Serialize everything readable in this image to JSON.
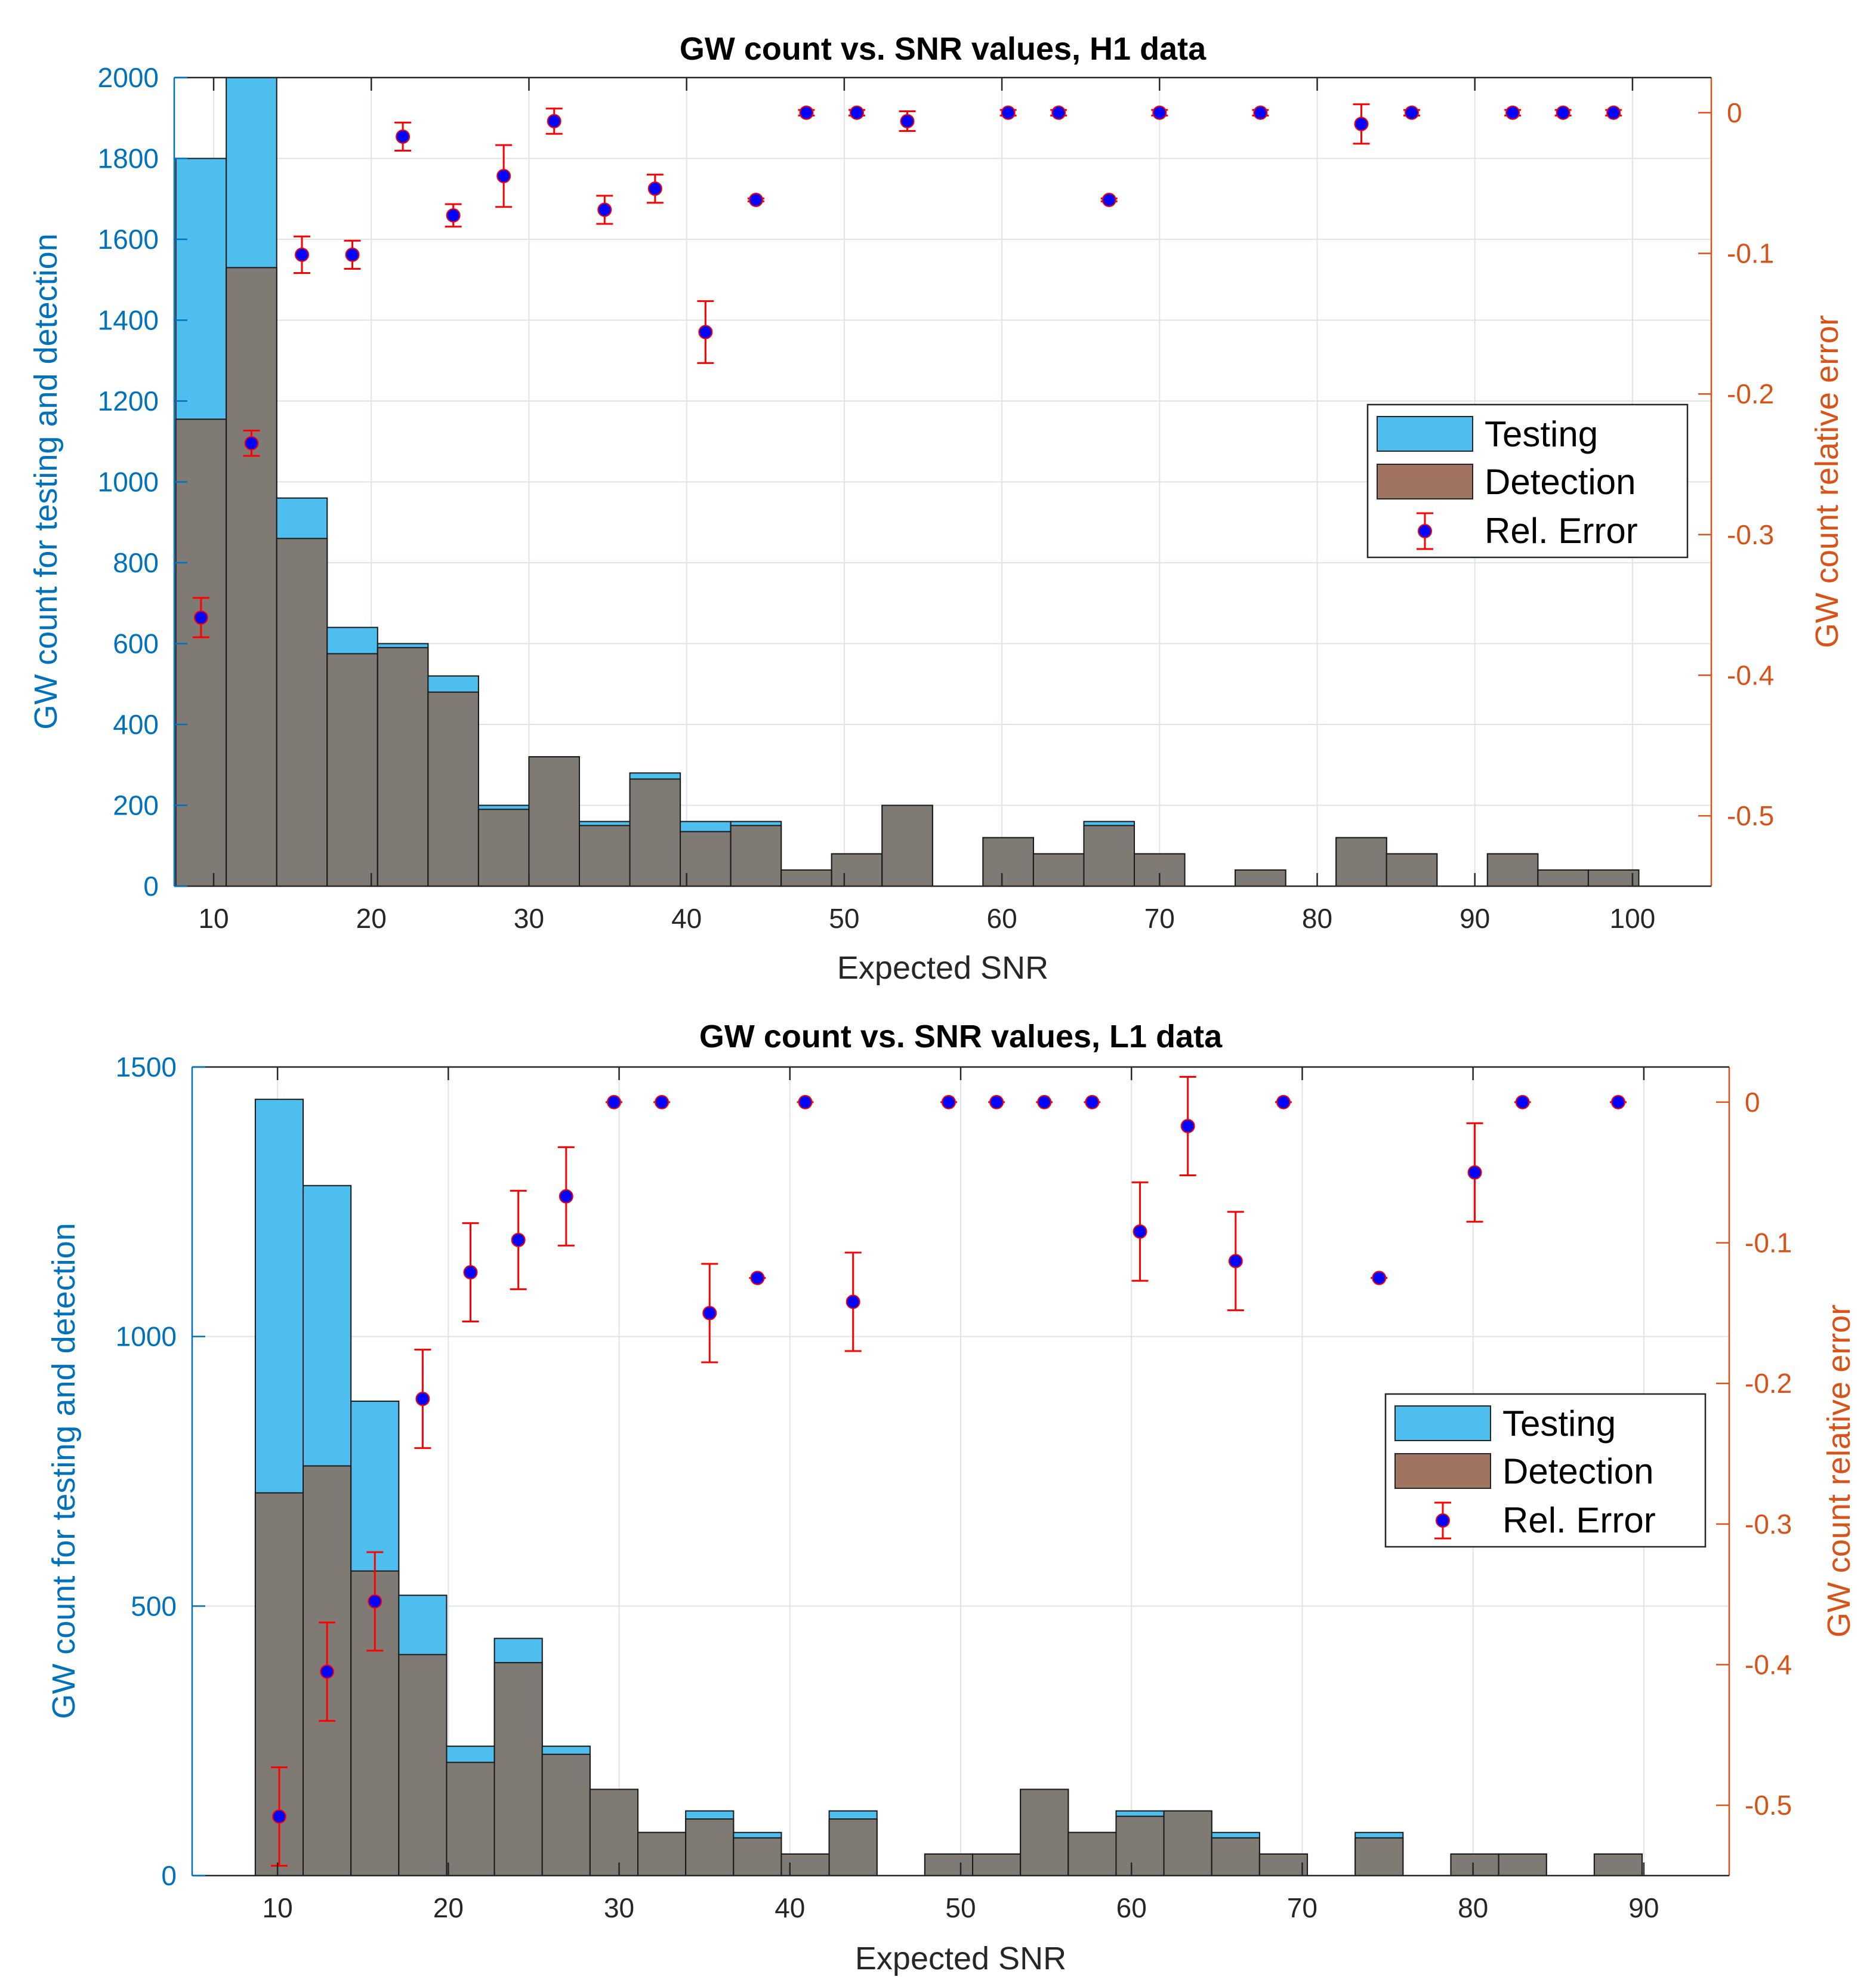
{
  "colors": {
    "testing": "#4DBEEE",
    "detection": "#A07460",
    "overlap": "#807A74",
    "left_axis": "#0072BD",
    "right_axis": "#D95319",
    "marker": "#0000FF",
    "marker_edge": "#FF0000",
    "errorbar": "#FF0000",
    "grid": "#DFE3EA"
  },
  "chart_data": [
    {
      "type": "bar",
      "title": "GW count vs. SNR values, H1 data",
      "xlabel": "Expected SNR",
      "ylabel_left": "GW count for testing and detection",
      "ylabel_right": "GW count relative error",
      "xlim": [
        7.5,
        105
      ],
      "ylim_left": [
        0,
        2000
      ],
      "ylim_right": [
        -0.55,
        0.025
      ],
      "xticks": [
        10,
        20,
        30,
        40,
        50,
        60,
        70,
        80,
        90,
        100
      ],
      "yticks_left": [
        0,
        200,
        400,
        600,
        800,
        1000,
        1200,
        1400,
        1600,
        1800,
        2000
      ],
      "yticks_right": [
        -0.5,
        -0.4,
        -0.3,
        -0.2,
        -0.1,
        0
      ],
      "yticklabels_right": [
        "-0.5",
        "-0.4",
        "-0.3",
        "-0.2",
        "-0.1",
        "0"
      ],
      "grid": true,
      "legend": {
        "placement": "right-middle",
        "entries": [
          "Testing",
          "Detection",
          "Rel. Error"
        ]
      },
      "bin_edges_start": 7.6,
      "bin_width": 3.2,
      "testing": [
        1800,
        2000,
        960,
        640,
        600,
        520,
        200,
        320,
        160,
        280,
        160,
        160,
        40,
        80,
        200,
        0,
        120,
        80,
        160,
        80,
        0,
        40,
        0,
        120,
        80,
        0,
        80,
        40,
        40
      ],
      "detection": [
        1155,
        1530,
        860,
        575,
        590,
        480,
        190,
        320,
        150,
        265,
        135,
        150,
        40,
        80,
        200,
        0,
        120,
        80,
        150,
        80,
        0,
        40,
        0,
        120,
        80,
        0,
        80,
        40,
        40
      ],
      "rel_error": {
        "x": [
          9.2,
          12.4,
          15.6,
          18.8,
          22.0,
          25.2,
          28.4,
          31.6,
          34.8,
          38.0,
          41.2,
          44.4,
          47.6,
          50.8,
          54.0,
          60.4,
          63.6,
          66.8,
          70.0,
          76.4,
          82.8,
          86.0,
          92.4,
          95.6,
          98.8
        ],
        "y": [
          -0.359,
          -0.235,
          -0.101,
          -0.101,
          -0.017,
          -0.073,
          -0.045,
          -0.006,
          -0.069,
          -0.054,
          -0.156,
          -0.062,
          0,
          0,
          -0.006,
          0,
          0,
          -0.062,
          0,
          0,
          -0.008,
          0,
          0,
          0,
          0
        ],
        "err": [
          0.014,
          0.009,
          0.013,
          0.01,
          0.01,
          0.008,
          0.022,
          0.009,
          0.01,
          0.01,
          0.022,
          0.001,
          0.002,
          0.002,
          0.007,
          0.002,
          0.002,
          0.001,
          0.002,
          0.002,
          0.014,
          0.002,
          0.002,
          0.002,
          0.002
        ]
      }
    },
    {
      "type": "bar",
      "title": "GW count vs. SNR values, L1 data",
      "xlabel": "Expected SNR",
      "ylabel_left": "GW count for testing and detection",
      "ylabel_right": "GW count relative error",
      "xlim": [
        5,
        95
      ],
      "ylim_left": [
        0,
        1500
      ],
      "ylim_right": [
        -0.55,
        0.025
      ],
      "xticks": [
        10,
        20,
        30,
        40,
        50,
        60,
        70,
        80,
        90
      ],
      "yticks_left": [
        0,
        500,
        1000,
        1500
      ],
      "yticks_right": [
        -0.5,
        -0.4,
        -0.3,
        -0.2,
        -0.1,
        0
      ],
      "yticklabels_right": [
        "-0.5",
        "-0.4",
        "-0.3",
        "-0.2",
        "-0.1",
        "0"
      ],
      "grid": true,
      "legend": {
        "placement": "right-middle",
        "entries": [
          "Testing",
          "Detection",
          "Rel. Error"
        ]
      },
      "bin_edges_start": 8.7,
      "bin_width": 2.8,
      "testing": [
        1440,
        1280,
        880,
        520,
        240,
        440,
        240,
        160,
        80,
        120,
        80,
        40,
        120,
        0,
        40,
        40,
        160,
        80,
        120,
        120,
        80,
        40,
        0,
        80,
        0,
        40,
        40,
        0,
        40
      ],
      "detection": [
        710,
        760,
        565,
        410,
        210,
        395,
        225,
        160,
        80,
        105,
        70,
        40,
        105,
        0,
        40,
        40,
        160,
        80,
        110,
        120,
        70,
        40,
        0,
        70,
        0,
        40,
        40,
        0,
        40
      ],
      "rel_error": {
        "x": [
          10.1,
          12.9,
          15.7,
          18.5,
          21.3,
          24.1,
          26.9,
          29.7,
          32.5,
          35.3,
          38.1,
          40.9,
          43.7,
          49.3,
          52.1,
          54.9,
          57.7,
          60.5,
          63.3,
          66.1,
          68.9,
          74.5,
          80.1,
          82.9,
          88.5
        ],
        "y": [
          -0.508,
          -0.405,
          -0.355,
          -0.211,
          -0.121,
          -0.098,
          -0.067,
          0,
          0,
          -0.15,
          -0.125,
          0,
          -0.142,
          0,
          0,
          0,
          0,
          -0.092,
          -0.017,
          -0.113,
          0,
          -0.125,
          -0.05,
          0,
          0
        ]
      }
    }
  ]
}
